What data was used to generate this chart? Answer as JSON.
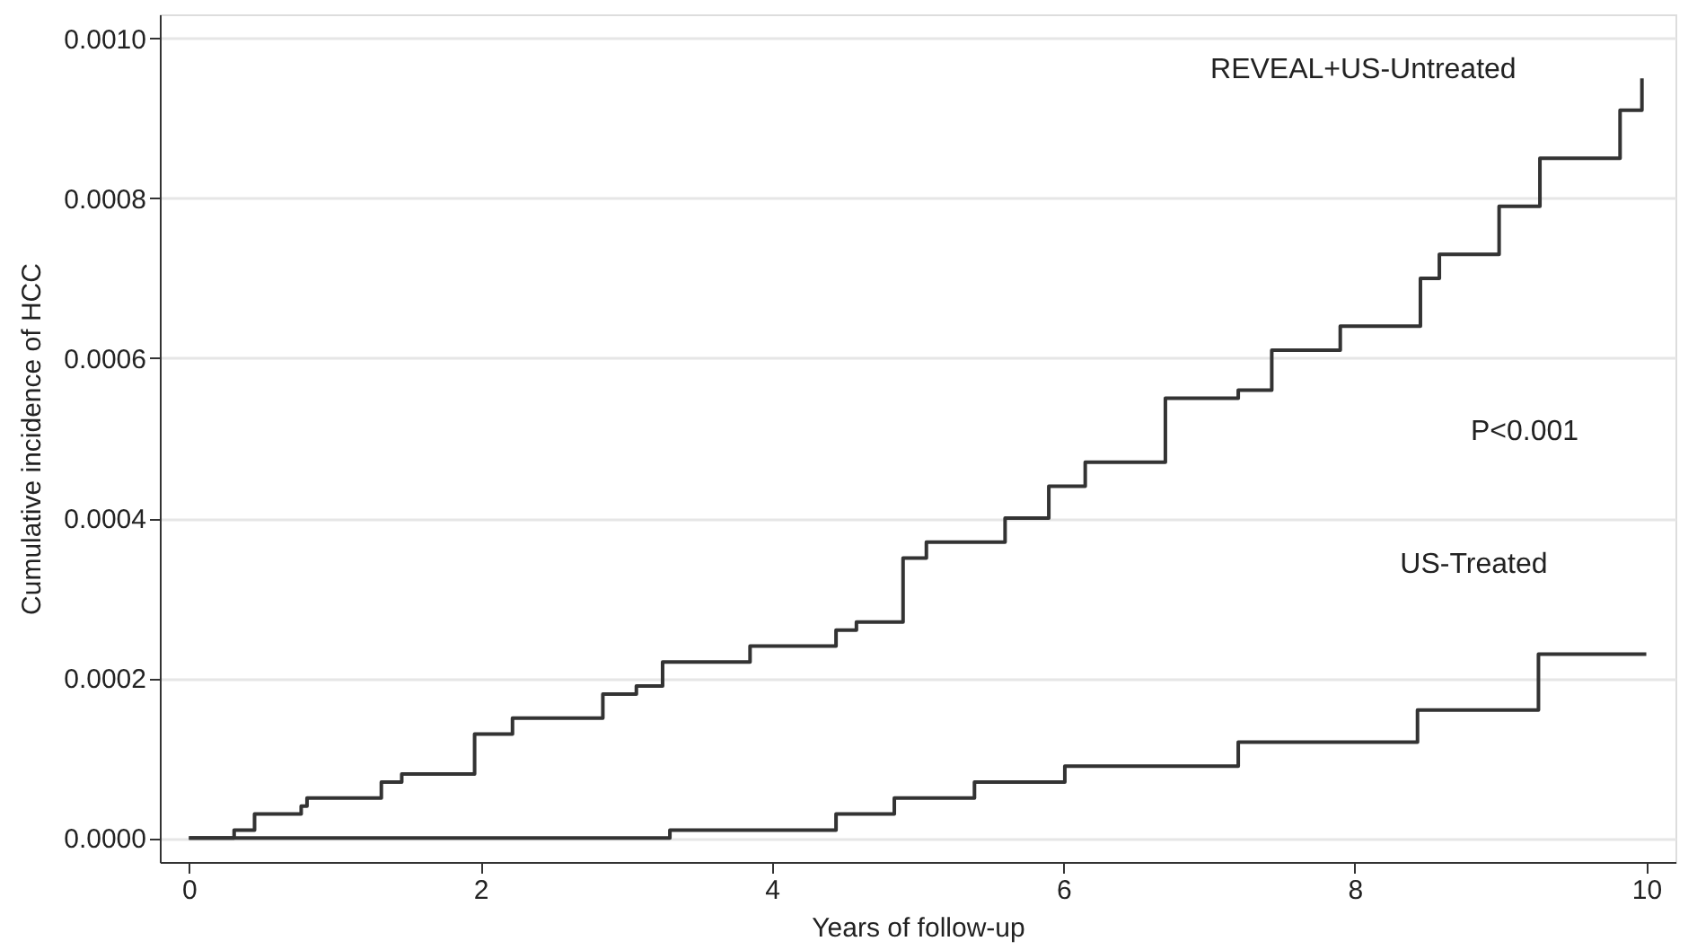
{
  "chart_data": {
    "type": "step",
    "xlabel": "Years of follow-up",
    "ylabel": "Cumulative incidence of HCC",
    "xlim": [
      -0.2,
      10.2
    ],
    "xticks": [
      0,
      2,
      4,
      6,
      8,
      10
    ],
    "ylim": [
      -3e-05,
      0.00103
    ],
    "yticks": [
      {
        "value": 0,
        "label": "0.0000"
      },
      {
        "value": 0.0002,
        "label": "0.0002"
      },
      {
        "value": 0.0004,
        "label": "0.0004"
      },
      {
        "value": 0.0006,
        "label": "0.0006"
      },
      {
        "value": 0.0008,
        "label": "0.0008"
      },
      {
        "value": 0.001,
        "label": "0.0010"
      }
    ],
    "grid": "y",
    "marker": "none",
    "line_style": "solid",
    "annotations": [
      "P<0.001"
    ],
    "series": [
      {
        "name": "REVEAL+US-Untreated",
        "color": "#333333",
        "x": [
          0,
          0.31,
          0.45,
          0.77,
          0.81,
          1.18,
          1.32,
          1.46,
          1.69,
          1.96,
          2.22,
          2.68,
          2.84,
          3.07,
          3.25,
          3.53,
          3.85,
          4.44,
          4.58,
          4.9,
          5.06,
          5.5,
          5.6,
          5.9,
          6.15,
          6.7,
          7.2,
          7.43,
          7.9,
          8.45,
          8.58,
          8.99,
          9.27,
          9.82,
          9.97
        ],
        "values": [
          0,
          1e-05,
          3e-05,
          4e-05,
          5e-05,
          5e-05,
          7e-05,
          8e-05,
          8e-05,
          0.00013,
          0.00015,
          0.00015,
          0.00018,
          0.00019,
          0.00022,
          0.00022,
          0.00024,
          0.00026,
          0.00027,
          0.00035,
          0.00037,
          0.00037,
          0.0004,
          0.00044,
          0.00047,
          0.00055,
          0.00056,
          0.00061,
          0.00064,
          0.0007,
          0.00073,
          0.00079,
          0.00085,
          0.00091,
          0.00095
        ]
      },
      {
        "name": "US-Treated",
        "color": "#333333",
        "x": [
          0,
          3.3,
          4.44,
          4.84,
          5.39,
          6.01,
          7.2,
          8.43,
          9.26,
          10
        ],
        "values": [
          0,
          1e-05,
          3e-05,
          5e-05,
          7e-05,
          9e-05,
          0.00012,
          0.00016,
          0.00023,
          0.00023
        ]
      }
    ]
  }
}
